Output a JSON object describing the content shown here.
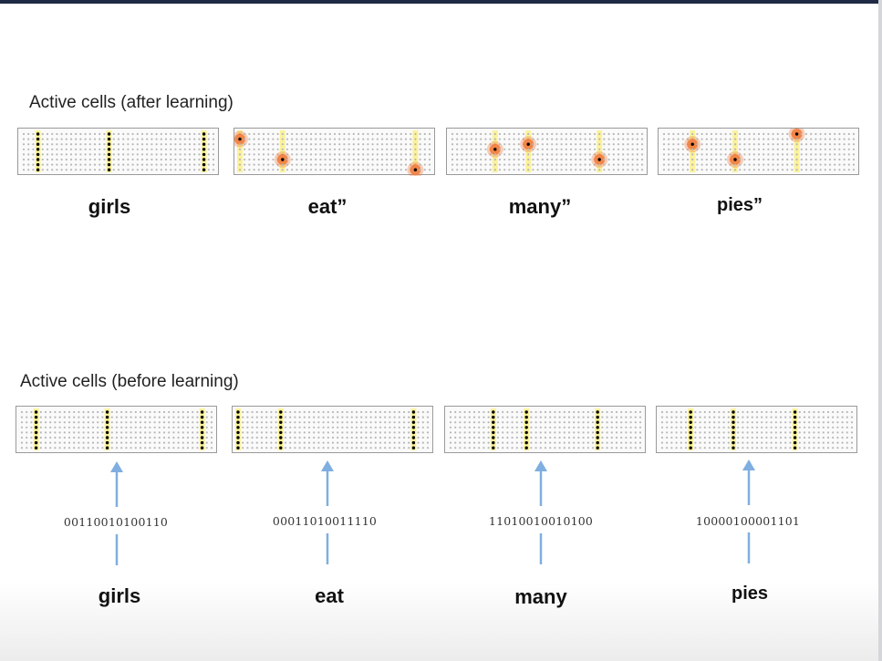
{
  "after": {
    "title": "Active cells (after learning)",
    "panels": [
      {
        "word": "girls",
        "columns": [
          3,
          18,
          38
        ],
        "active": []
      },
      {
        "word": "eat”",
        "columns": [
          0,
          9,
          37
        ],
        "active": [
          [
            0,
            1
          ],
          [
            9,
            5
          ],
          [
            37,
            7
          ]
        ]
      },
      {
        "word": "many”",
        "columns": [
          9,
          16,
          31
        ],
        "active": [
          [
            9,
            3
          ],
          [
            16,
            2
          ],
          [
            31,
            5
          ]
        ]
      },
      {
        "word": "pies”",
        "columns": [
          6,
          15,
          28
        ],
        "active": [
          [
            6,
            2
          ],
          [
            15,
            5
          ],
          [
            28,
            0
          ]
        ]
      }
    ]
  },
  "before": {
    "title": "Active cells (before learning)",
    "panels": [
      {
        "word": "girls",
        "code": "00110010100110",
        "columns": [
          3,
          18,
          38
        ]
      },
      {
        "word": "eat",
        "code": "00011010011110",
        "columns": [
          0,
          9,
          37
        ]
      },
      {
        "word": "many",
        "code": "11010010010100",
        "columns": [
          9,
          16,
          31
        ]
      },
      {
        "word": "pies",
        "code": "10000100001101",
        "columns": [
          6,
          15,
          28
        ]
      }
    ]
  },
  "colors": {
    "column_highlight": "#fbf29a",
    "active_cell": "#000000",
    "inactive_cell": "#b8b8b8",
    "glow": "#f07a3c",
    "arrow": "#7faee0"
  }
}
